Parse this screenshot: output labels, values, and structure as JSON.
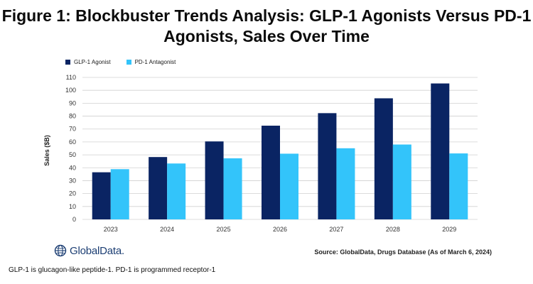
{
  "page": {
    "title_line1": "Figure 1: Blockbuster Trends Analysis: GLP-1 Agonists Versus PD-1",
    "title_line2": "Agonists, Sales Over Time",
    "brand": "GlobalData.",
    "source": "Source: GlobalData, Drugs Database (As of March 6, 2024)",
    "footnote": "GLP-1 is glucagon-like peptide-1. PD-1 is programmed receptor-1"
  },
  "colors": {
    "glp1": "#0a2463",
    "pd1": "#33c4fa",
    "grid": "#d0d0d0",
    "axis_text": "#333333",
    "brand": "#1c3e73"
  },
  "chart_data": {
    "type": "bar",
    "title": "Figure 1: Blockbuster Trends Analysis: GLP-1 Agonists Versus PD-1 Agonists, Sales Over Time",
    "xlabel": "",
    "ylabel": "Sales ($B)",
    "categories": [
      "2023",
      "2024",
      "2025",
      "2026",
      "2027",
      "2028",
      "2029"
    ],
    "series": [
      {
        "name": "GLP-1 Agonist",
        "values": [
          36.5,
          48.3,
          60.4,
          72.6,
          82.3,
          93.8,
          105.3
        ]
      },
      {
        "name": "PD-1 Antagonist",
        "values": [
          38.9,
          43.3,
          47.3,
          50.9,
          55.1,
          58.0,
          51.1
        ]
      }
    ],
    "ylim": [
      0,
      110
    ],
    "yticks": [
      0,
      10,
      20,
      30,
      40,
      50,
      60,
      70,
      80,
      90,
      100,
      110
    ],
    "grid": true,
    "legend_position": "top-left"
  }
}
